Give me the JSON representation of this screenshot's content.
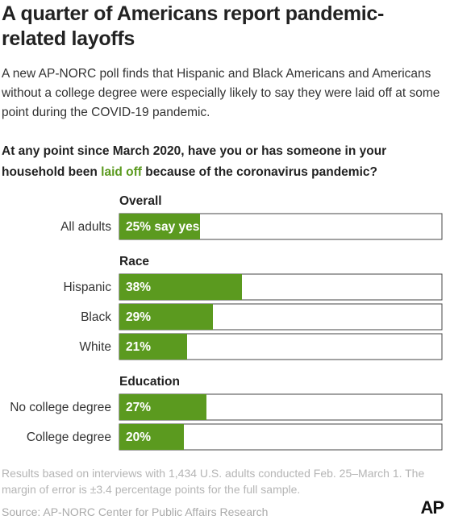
{
  "chart_data": {
    "type": "bar",
    "title": "A quarter of Americans report pandemic-related layoffs",
    "subtitle": "A new AP-NORC poll finds that Hispanic and Black Americans and Americans without a college degree were especially likely to say they were laid off at some point during the COVID-19 pandemic.",
    "question": [
      "At any point since March 2020, have you or has someone in your household been ",
      "laid off",
      " because of the coronavirus pandemic?"
    ],
    "color": "#5b9a1f",
    "highlight_color": "#5b9a1f",
    "xlim": [
      0,
      100
    ],
    "groups": [
      {
        "name": "Overall",
        "categories": [
          "All adults"
        ],
        "values": [
          25
        ],
        "value_labels": [
          "25% say yes"
        ]
      },
      {
        "name": "Race",
        "categories": [
          "Hispanic",
          "Black",
          "White"
        ],
        "values": [
          38,
          29,
          21
        ],
        "value_labels": [
          "38%",
          "29%",
          "21%"
        ]
      },
      {
        "name": "Education",
        "categories": [
          "No college degree",
          "College degree"
        ],
        "values": [
          27,
          20
        ],
        "value_labels": [
          "27%",
          "20%"
        ]
      }
    ],
    "notes": "Results based on interviews with 1,434 U.S. adults conducted Feb. 25–March 1. The margin of error is ±3.4 percentage points for the full sample.",
    "source": "Source: AP-NORC Center for Public Affairs Research",
    "logo": "AP"
  }
}
